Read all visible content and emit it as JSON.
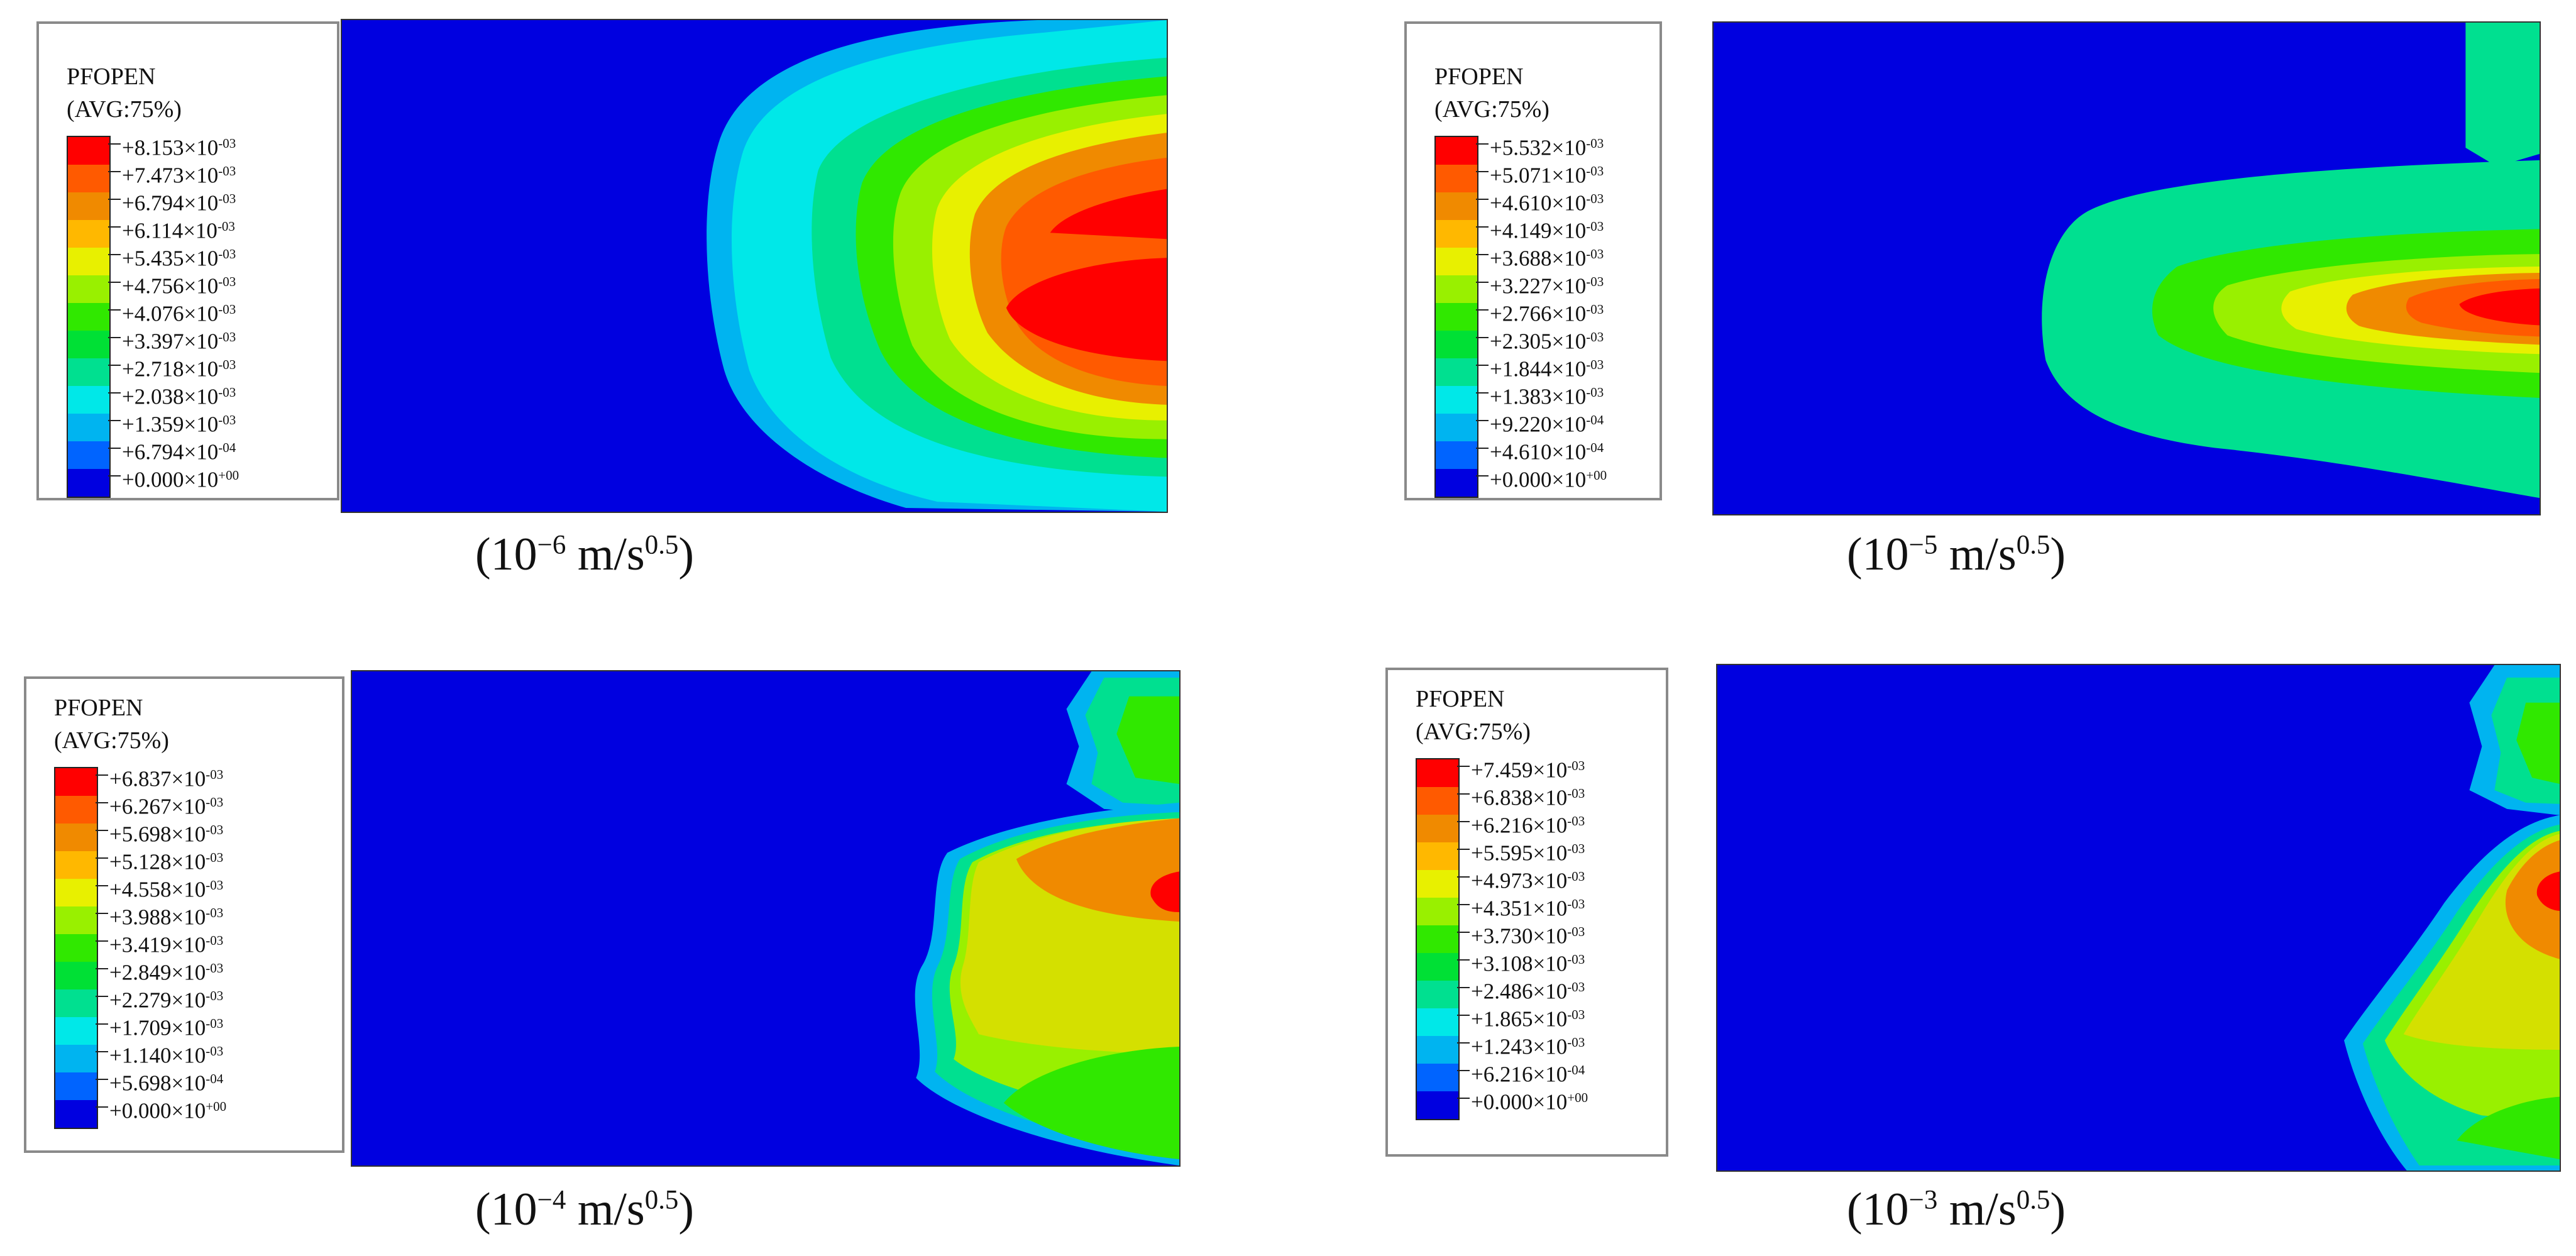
{
  "colors": [
    "#ff0000",
    "#ff5a00",
    "#f08a00",
    "#ffb800",
    "#e8f000",
    "#99f000",
    "#30e800",
    "#00e035",
    "#00e090",
    "#00e8e8",
    "#00b4f0",
    "#0064ff",
    "#0000e0"
  ],
  "panels": [
    {
      "title": "PFOPEN",
      "subtitle": "(AVG:75%)",
      "labels": [
        [
          "+8.153×10",
          "-03"
        ],
        [
          "+7.473×10",
          "-03"
        ],
        [
          "+6.794×10",
          "-03"
        ],
        [
          "+6.114×10",
          "-03"
        ],
        [
          "+5.435×10",
          "-03"
        ],
        [
          "+4.756×10",
          "-03"
        ],
        [
          "+4.076×10",
          "-03"
        ],
        [
          "+3.397×10",
          "-03"
        ],
        [
          "+2.718×10",
          "-03"
        ],
        [
          "+2.038×10",
          "-03"
        ],
        [
          "+1.359×10",
          "-03"
        ],
        [
          "+6.794×10",
          "-04"
        ],
        [
          "+0.000×10",
          "+00"
        ]
      ],
      "caption": {
        "open": "(10",
        "exp": "−6",
        "unit": " m/s",
        "unit_exp": "0.5",
        "close": ")"
      }
    },
    {
      "title": "PFOPEN",
      "subtitle": "(AVG:75%)",
      "labels": [
        [
          "+5.532×10",
          "-03"
        ],
        [
          "+5.071×10",
          "-03"
        ],
        [
          "+4.610×10",
          "-03"
        ],
        [
          "+4.149×10",
          "-03"
        ],
        [
          "+3.688×10",
          "-03"
        ],
        [
          "+3.227×10",
          "-03"
        ],
        [
          "+2.766×10",
          "-03"
        ],
        [
          "+2.305×10",
          "-03"
        ],
        [
          "+1.844×10",
          "-03"
        ],
        [
          "+1.383×10",
          "-03"
        ],
        [
          "+9.220×10",
          "-04"
        ],
        [
          "+4.610×10",
          "-04"
        ],
        [
          "+0.000×10",
          "+00"
        ]
      ],
      "caption": {
        "open": "(10",
        "exp": "−5",
        "unit": " m/s",
        "unit_exp": "0.5",
        "close": ")"
      }
    },
    {
      "title": "PFOPEN",
      "subtitle": "(AVG:75%)",
      "labels": [
        [
          "+6.837×10",
          "-03"
        ],
        [
          "+6.267×10",
          "-03"
        ],
        [
          "+5.698×10",
          "-03"
        ],
        [
          "+5.128×10",
          "-03"
        ],
        [
          "+4.558×10",
          "-03"
        ],
        [
          "+3.988×10",
          "-03"
        ],
        [
          "+3.419×10",
          "-03"
        ],
        [
          "+2.849×10",
          "-03"
        ],
        [
          "+2.279×10",
          "-03"
        ],
        [
          "+1.709×10",
          "-03"
        ],
        [
          "+1.140×10",
          "-03"
        ],
        [
          "+5.698×10",
          "-04"
        ],
        [
          "+0.000×10",
          "+00"
        ]
      ],
      "caption": {
        "open": "(10",
        "exp": "−4",
        "unit": " m/s",
        "unit_exp": "0.5",
        "close": ")"
      }
    },
    {
      "title": "PFOPEN",
      "subtitle": "(AVG:75%)",
      "labels": [
        [
          "+7.459×10",
          "-03"
        ],
        [
          "+6.838×10",
          "-03"
        ],
        [
          "+6.216×10",
          "-03"
        ],
        [
          "+5.595×10",
          "-03"
        ],
        [
          "+4.973×10",
          "-03"
        ],
        [
          "+4.351×10",
          "-03"
        ],
        [
          "+3.730×10",
          "-03"
        ],
        [
          "+3.108×10",
          "-03"
        ],
        [
          "+2.486×10",
          "-03"
        ],
        [
          "+1.865×10",
          "-03"
        ],
        [
          "+1.243×10",
          "-03"
        ],
        [
          "+6.216×10",
          "-04"
        ],
        [
          "+0.000×10",
          "+00"
        ]
      ],
      "caption": {
        "open": "(10",
        "exp": "−3",
        "unit": " m/s",
        "unit_exp": "0.5",
        "close": ")"
      }
    }
  ]
}
